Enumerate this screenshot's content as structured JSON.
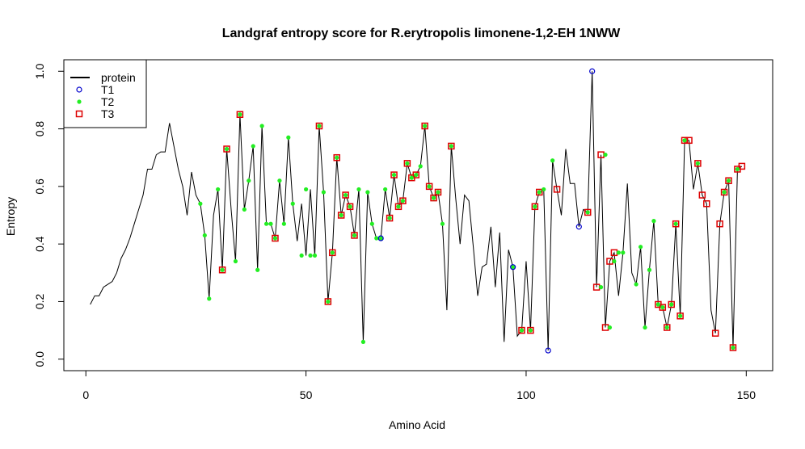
{
  "chart_data": {
    "type": "line",
    "title": "Landgraf entropy score for  R.erytropolis limonene-1,2-EH 1NWW",
    "xlabel": "Amino Acid",
    "ylabel": "Entropy",
    "xlim": [
      -5,
      156
    ],
    "ylim": [
      -0.04,
      1.04
    ],
    "xticks": [
      0,
      50,
      100,
      150
    ],
    "yticks": [
      0.0,
      0.2,
      0.4,
      0.6,
      0.8,
      1.0
    ],
    "xtick_labels": [
      "0",
      "50",
      "100",
      "150"
    ],
    "ytick_labels": [
      "0.0",
      "0.2",
      "0.4",
      "0.6",
      "0.8",
      "1.0"
    ],
    "legend_position": "top-left",
    "grid": false,
    "series": [
      {
        "name": "protein",
        "kind": "line",
        "color": "#000000",
        "x": [
          1,
          2,
          3,
          4,
          5,
          6,
          7,
          8,
          9,
          10,
          11,
          12,
          13,
          14,
          15,
          16,
          17,
          18,
          19,
          20,
          21,
          22,
          23,
          24,
          25,
          26,
          27,
          28,
          29,
          30,
          31,
          32,
          33,
          34,
          35,
          36,
          37,
          38,
          39,
          40,
          41,
          42,
          43,
          44,
          45,
          46,
          47,
          48,
          49,
          50,
          51,
          52,
          53,
          54,
          55,
          56,
          57,
          58,
          59,
          60,
          61,
          62,
          63,
          64,
          65,
          66,
          67,
          68,
          69,
          70,
          71,
          72,
          73,
          74,
          75,
          76,
          77,
          78,
          79,
          80,
          81,
          82,
          83,
          84,
          85,
          86,
          87,
          88,
          89,
          90,
          91,
          92,
          93,
          94,
          95,
          96,
          97,
          98,
          99,
          100,
          101,
          102,
          103,
          104,
          105,
          106,
          107,
          108,
          109,
          110,
          111,
          112,
          113,
          114,
          115,
          116,
          117,
          118,
          119,
          120,
          121,
          122,
          123,
          124,
          125,
          126,
          127,
          128,
          129,
          130,
          131,
          132,
          133,
          134,
          135,
          136,
          137,
          138,
          139,
          140,
          141,
          142,
          143,
          144,
          145,
          146,
          147,
          148,
          149
        ],
        "y": [
          0.19,
          0.22,
          0.22,
          0.25,
          0.26,
          0.27,
          0.3,
          0.35,
          0.38,
          0.42,
          0.47,
          0.52,
          0.57,
          0.66,
          0.66,
          0.71,
          0.72,
          0.72,
          0.82,
          0.74,
          0.66,
          0.6,
          0.5,
          0.65,
          0.57,
          0.54,
          0.43,
          0.21,
          0.5,
          0.59,
          0.31,
          0.73,
          0.52,
          0.34,
          0.85,
          0.52,
          0.62,
          0.74,
          0.31,
          0.81,
          0.47,
          0.47,
          0.42,
          0.62,
          0.47,
          0.77,
          0.54,
          0.41,
          0.54,
          0.36,
          0.59,
          0.36,
          0.81,
          0.58,
          0.2,
          0.37,
          0.7,
          0.5,
          0.57,
          0.53,
          0.43,
          0.59,
          0.06,
          0.58,
          0.47,
          0.42,
          0.42,
          0.59,
          0.49,
          0.64,
          0.53,
          0.55,
          0.68,
          0.63,
          0.64,
          0.67,
          0.81,
          0.6,
          0.56,
          0.58,
          0.47,
          0.17,
          0.74,
          0.56,
          0.4,
          0.57,
          0.55,
          0.39,
          0.22,
          0.32,
          0.33,
          0.46,
          0.25,
          0.44,
          0.06,
          0.38,
          0.32,
          0.08,
          0.1,
          0.34,
          0.1,
          0.53,
          0.58,
          0.59,
          0.03,
          0.69,
          0.59,
          0.5,
          0.73,
          0.61,
          0.61,
          0.46,
          0.52,
          0.51,
          1.0,
          0.25,
          0.71,
          0.11,
          0.34,
          0.37,
          0.22,
          0.37,
          0.61,
          0.3,
          0.26,
          0.39,
          0.11,
          0.31,
          0.48,
          0.19,
          0.18,
          0.11,
          0.19,
          0.47,
          0.15,
          0.76,
          0.76,
          0.59,
          0.68,
          0.57,
          0.54,
          0.17,
          0.09,
          0.47,
          0.58,
          0.62,
          0.04,
          0.66,
          0.67
        ]
      },
      {
        "name": "T1",
        "kind": "points",
        "marker": "circle",
        "color": "#0000cc",
        "x": [
          67,
          97,
          105,
          112,
          115
        ],
        "y": [
          0.42,
          0.32,
          0.03,
          0.46,
          1.0
        ]
      },
      {
        "name": "T2",
        "kind": "points",
        "marker": "dot",
        "color": "#22ee22",
        "x": [
          26,
          27,
          28,
          30,
          31,
          32,
          34,
          35,
          36,
          37,
          38,
          39,
          40,
          41,
          42,
          43,
          44,
          45,
          46,
          47,
          49,
          50,
          51,
          52,
          53,
          54,
          55,
          56,
          57,
          58,
          59,
          60,
          61,
          62,
          63,
          64,
          65,
          66,
          67,
          68,
          69,
          70,
          71,
          72,
          73,
          74,
          75,
          76,
          77,
          78,
          79,
          80,
          81,
          83,
          97,
          99,
          101,
          102,
          103,
          104,
          106,
          114,
          117,
          118,
          119,
          120,
          121,
          122,
          125,
          126,
          127,
          128,
          129,
          130,
          131,
          132,
          133,
          134,
          135,
          136,
          139,
          145,
          146,
          147,
          148
        ],
        "y": [
          0.54,
          0.43,
          0.21,
          0.59,
          0.31,
          0.73,
          0.34,
          0.85,
          0.52,
          0.62,
          0.74,
          0.31,
          0.81,
          0.47,
          0.47,
          0.42,
          0.62,
          0.47,
          0.77,
          0.54,
          0.36,
          0.59,
          0.36,
          0.36,
          0.81,
          0.58,
          0.2,
          0.37,
          0.7,
          0.5,
          0.57,
          0.53,
          0.43,
          0.59,
          0.06,
          0.58,
          0.47,
          0.42,
          0.42,
          0.59,
          0.49,
          0.64,
          0.53,
          0.55,
          0.68,
          0.63,
          0.64,
          0.67,
          0.81,
          0.6,
          0.56,
          0.58,
          0.47,
          0.74,
          0.32,
          0.1,
          0.1,
          0.53,
          0.58,
          0.59,
          0.69,
          0.51,
          0.25,
          0.71,
          0.11,
          0.34,
          0.37,
          0.37,
          0.26,
          0.39,
          0.11,
          0.31,
          0.48,
          0.19,
          0.18,
          0.11,
          0.19,
          0.47,
          0.15,
          0.76,
          0.68,
          0.58,
          0.62,
          0.04,
          0.66
        ]
      },
      {
        "name": "T3",
        "kind": "points",
        "marker": "square",
        "color": "#dd0000",
        "x": [
          31,
          32,
          35,
          43,
          53,
          55,
          56,
          57,
          58,
          59,
          60,
          61,
          69,
          70,
          71,
          72,
          73,
          74,
          75,
          77,
          78,
          79,
          80,
          83,
          99,
          101,
          102,
          103,
          107,
          114,
          116,
          117,
          118,
          119,
          120,
          130,
          131,
          132,
          133,
          134,
          135,
          136,
          137,
          139,
          140,
          141,
          143,
          144,
          145,
          146,
          147,
          148,
          149
        ],
        "y": [
          0.31,
          0.73,
          0.85,
          0.42,
          0.81,
          0.2,
          0.37,
          0.7,
          0.5,
          0.57,
          0.53,
          0.43,
          0.49,
          0.64,
          0.53,
          0.55,
          0.68,
          0.63,
          0.64,
          0.81,
          0.6,
          0.56,
          0.58,
          0.74,
          0.1,
          0.1,
          0.53,
          0.58,
          0.59,
          0.51,
          0.25,
          0.71,
          0.11,
          0.34,
          0.37,
          0.19,
          0.18,
          0.11,
          0.19,
          0.47,
          0.15,
          0.76,
          0.76,
          0.68,
          0.57,
          0.54,
          0.09,
          0.47,
          0.58,
          0.62,
          0.04,
          0.66,
          0.67
        ]
      }
    ]
  }
}
